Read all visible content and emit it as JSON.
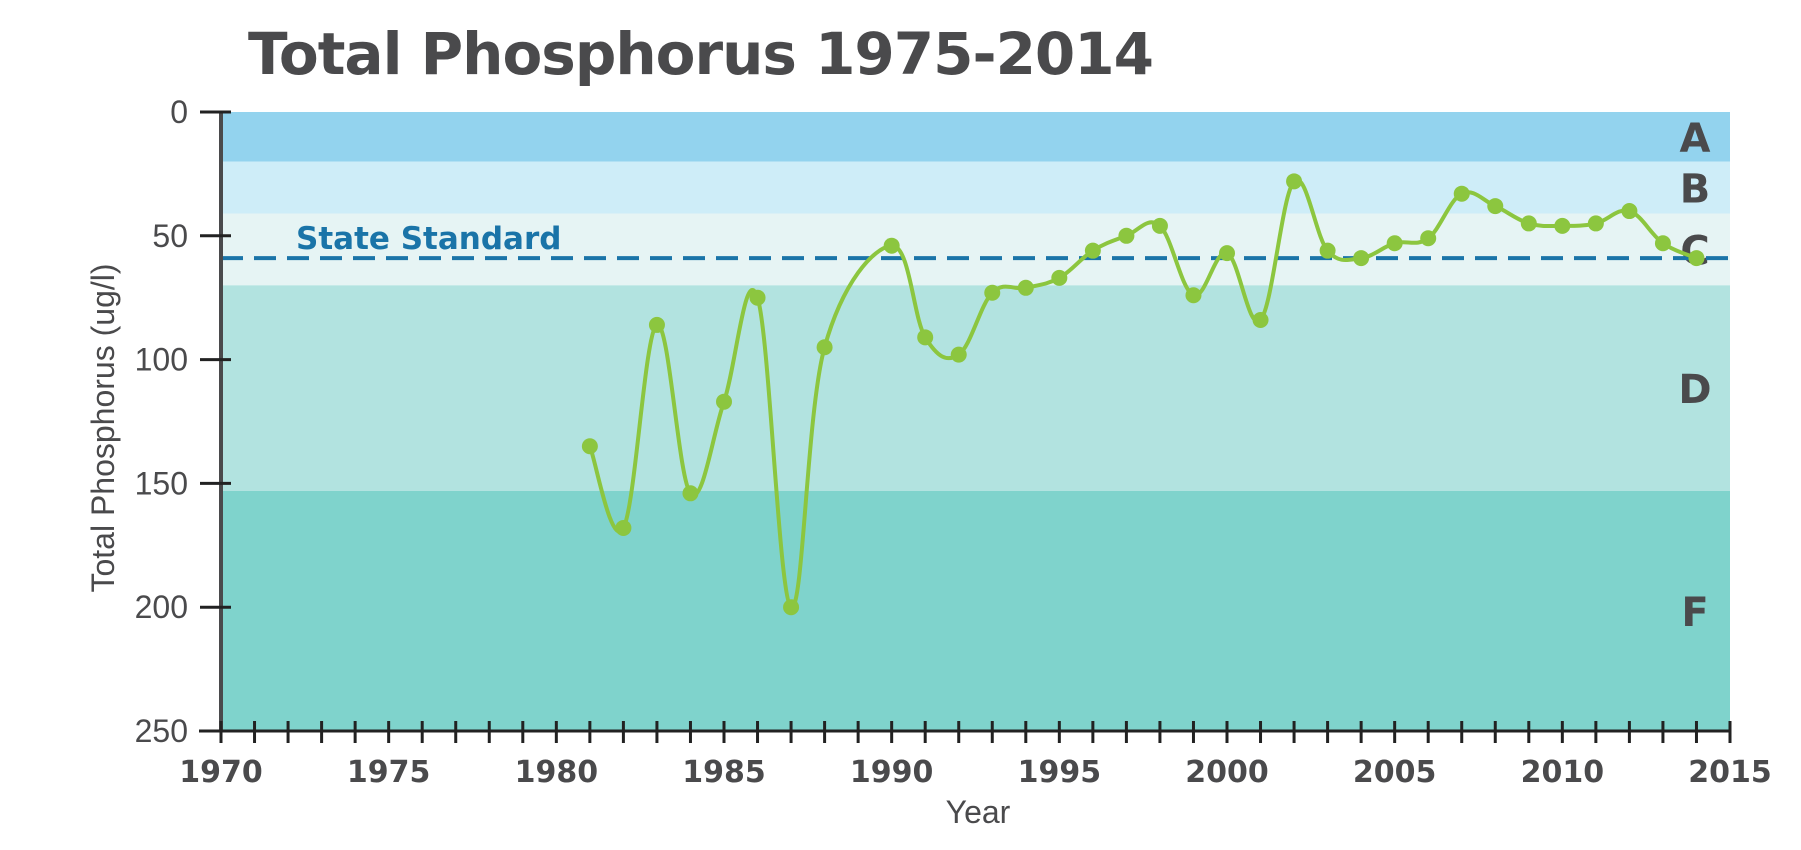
{
  "chart_data": {
    "type": "line",
    "title": "Total Phosphorus 1975-2014",
    "xlabel": "Year",
    "ylabel": "Total Phosphorus (ug/l)",
    "xlim": [
      1970,
      2015
    ],
    "ylim": [
      0,
      250
    ],
    "y_inverted": true,
    "x_ticks": [
      1970,
      1975,
      1980,
      1985,
      1990,
      1995,
      2000,
      2005,
      2010,
      2015
    ],
    "y_ticks": [
      0,
      50,
      100,
      150,
      200,
      250
    ],
    "grid": false,
    "series": [
      {
        "color": "#8cc63f",
        "x": [
          1981,
          1982,
          1983,
          1984,
          1985,
          1986,
          1987,
          1988,
          1990,
          1991,
          1992,
          1993,
          1994,
          1995,
          1996,
          1997,
          1998,
          1999,
          2000,
          2001,
          2002,
          2003,
          2004,
          2005,
          2006,
          2007,
          2008,
          2009,
          2010,
          2011,
          2012,
          2013,
          2014
        ],
        "y": [
          135,
          168,
          86,
          154,
          117,
          75,
          200,
          95,
          54,
          91,
          98,
          73,
          71,
          67,
          56,
          50,
          46,
          74,
          57,
          84,
          28,
          56,
          59,
          53,
          51,
          33,
          38,
          45,
          46,
          45,
          40,
          53,
          59
        ]
      }
    ],
    "bands": [
      {
        "label": "A",
        "from": 0,
        "to": 20,
        "color": "#93d3ee"
      },
      {
        "label": "B",
        "from": 20,
        "to": 41,
        "color": "#ceedf8"
      },
      {
        "label": "C",
        "from": 41,
        "to": 70,
        "color": "#e6f4f4"
      },
      {
        "label": "D",
        "from": 70,
        "to": 153,
        "color": "#b2e3e0"
      },
      {
        "label": "F",
        "from": 153,
        "to": 250,
        "color": "#7fd3cc"
      }
    ],
    "reference_line": {
      "label": "State Standard",
      "value": 59,
      "color": "#1a74a8"
    }
  }
}
